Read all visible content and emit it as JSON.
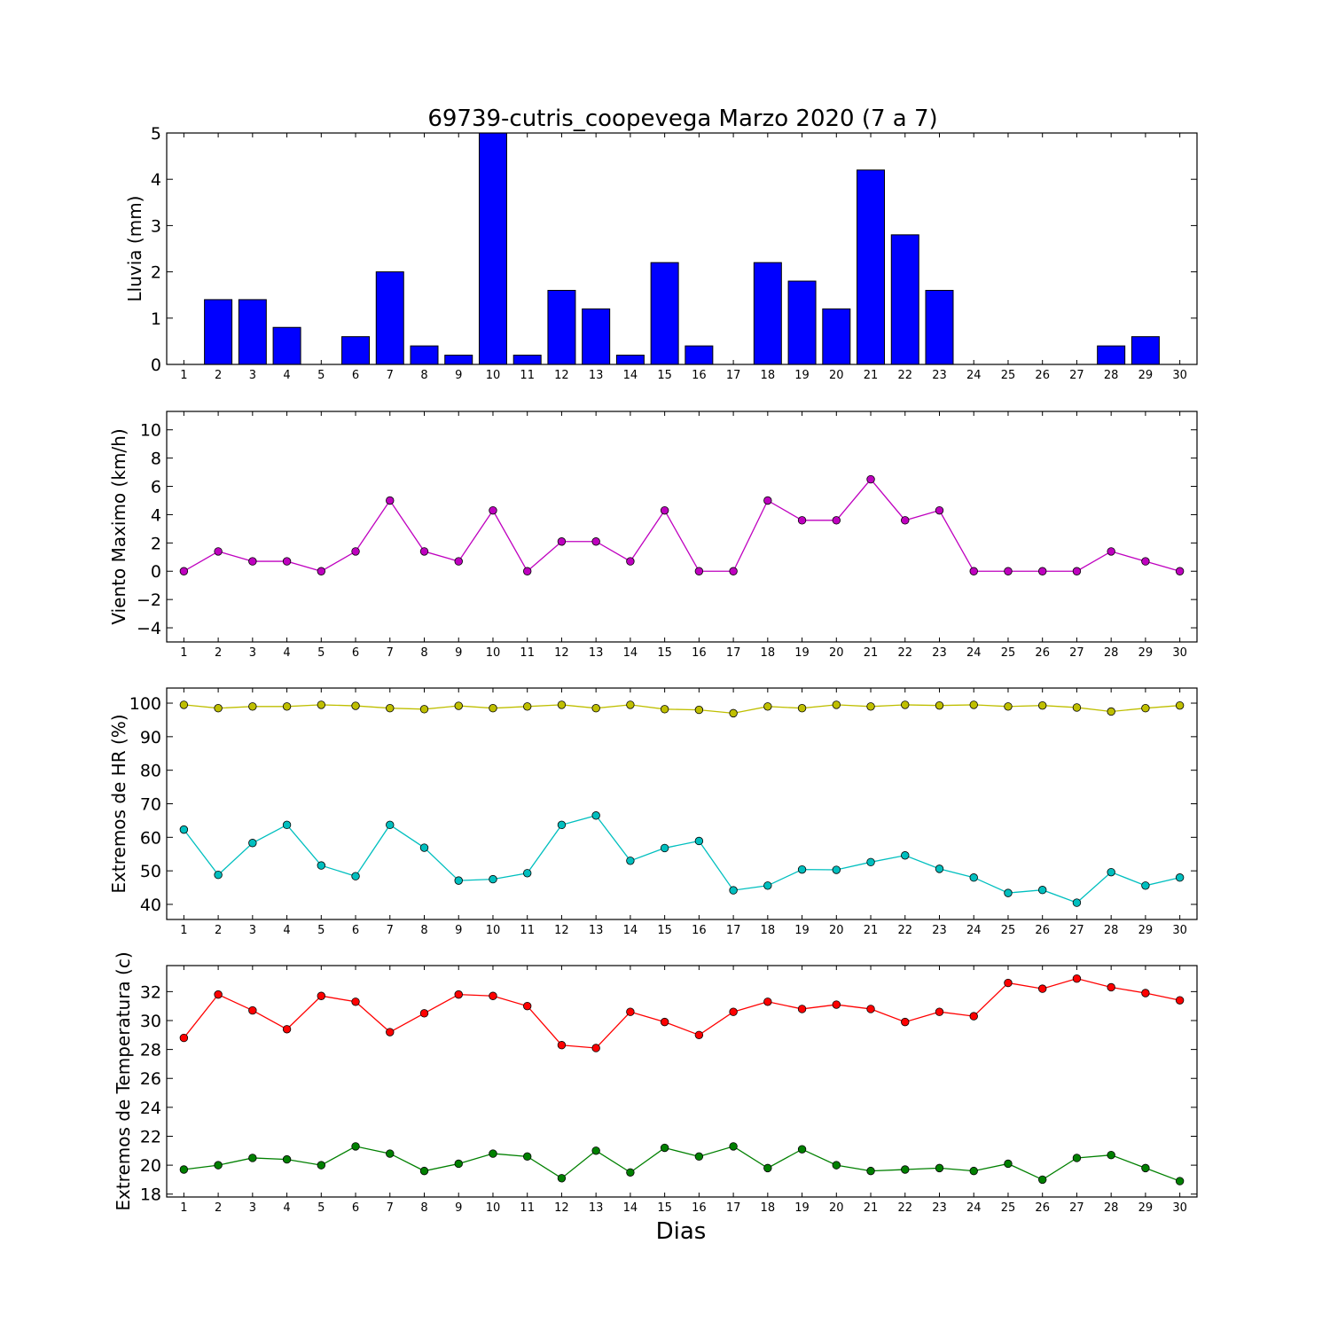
{
  "figure": {
    "title": "69739-cutris_coopevega Marzo 2020  (7 a 7)",
    "xlabel": "Dias"
  },
  "chart_data": [
    {
      "type": "bar",
      "ylabel": "Lluvia (mm)",
      "ylim": [
        0,
        5
      ],
      "yticks": [
        0,
        1,
        2,
        3,
        4,
        5
      ],
      "xlim": [
        0.5,
        30.5
      ],
      "x": [
        1,
        2,
        3,
        4,
        5,
        6,
        7,
        8,
        9,
        10,
        11,
        12,
        13,
        14,
        15,
        16,
        17,
        18,
        19,
        20,
        21,
        22,
        23,
        24,
        25,
        26,
        27,
        28,
        29,
        30
      ],
      "series": [
        {
          "color": "#0000ff",
          "values": [
            0,
            1.4,
            1.4,
            0.8,
            0,
            0.6,
            2.0,
            0.4,
            0.2,
            5.0,
            0.2,
            1.6,
            1.2,
            0.2,
            2.2,
            0.4,
            0,
            2.2,
            1.8,
            1.2,
            4.2,
            2.8,
            1.6,
            0,
            0,
            0,
            0,
            0.4,
            0.6,
            0
          ]
        }
      ]
    },
    {
      "type": "line",
      "ylabel": "Viento Maximo (km/h)",
      "ylim": [
        -5,
        11.3
      ],
      "yticks": [
        -4,
        -2,
        0,
        2,
        4,
        6,
        8,
        10
      ],
      "xlim": [
        0.5,
        30.5
      ],
      "x": [
        1,
        2,
        3,
        4,
        5,
        6,
        7,
        8,
        9,
        10,
        11,
        12,
        13,
        14,
        15,
        16,
        17,
        18,
        19,
        20,
        21,
        22,
        23,
        24,
        25,
        26,
        27,
        28,
        29,
        30
      ],
      "series": [
        {
          "color": "#bf00bf",
          "values": [
            0,
            1.4,
            0.7,
            0.7,
            0,
            1.4,
            5.0,
            1.4,
            0.7,
            4.3,
            0,
            2.1,
            2.1,
            0.7,
            4.3,
            0,
            0,
            5.0,
            3.6,
            3.6,
            6.5,
            3.6,
            4.3,
            0,
            0,
            0,
            0,
            1.4,
            0.7,
            0
          ]
        }
      ]
    },
    {
      "type": "line",
      "ylabel": "Extremos de HR (%)",
      "ylim": [
        35.5,
        104.5
      ],
      "yticks": [
        40,
        50,
        60,
        70,
        80,
        90,
        100
      ],
      "xlim": [
        0.5,
        30.5
      ],
      "x": [
        1,
        2,
        3,
        4,
        5,
        6,
        7,
        8,
        9,
        10,
        11,
        12,
        13,
        14,
        15,
        16,
        17,
        18,
        19,
        20,
        21,
        22,
        23,
        24,
        25,
        26,
        27,
        28,
        29,
        30
      ],
      "series": [
        {
          "color": "#bfbf00",
          "values": [
            99.5,
            98.5,
            99,
            99,
            99.5,
            99.2,
            98.5,
            98.2,
            99.2,
            98.5,
            99,
            99.5,
            98.5,
            99.5,
            98.2,
            98,
            97,
            99,
            98.5,
            99.5,
            99,
            99.5,
            99.3,
            99.5,
            99,
            99.3,
            98.7,
            97.5,
            98.5,
            99.3
          ]
        },
        {
          "color": "#00bfbf",
          "values": [
            62.3,
            48.8,
            58.3,
            63.7,
            51.6,
            48.4,
            63.7,
            56.9,
            47.1,
            47.5,
            49.3,
            63.7,
            66.5,
            53,
            56.8,
            58.9,
            44.2,
            45.6,
            50.4,
            50.3,
            52.6,
            54.6,
            50.6,
            48,
            43.4,
            44.3,
            40.5,
            49.6,
            45.6,
            48
          ]
        }
      ]
    },
    {
      "type": "line",
      "ylabel": "Extremos de Temperatura (c)",
      "ylim": [
        17.8,
        33.8
      ],
      "yticks": [
        18,
        20,
        22,
        24,
        26,
        28,
        30,
        32
      ],
      "xlim": [
        0.5,
        30.5
      ],
      "x": [
        1,
        2,
        3,
        4,
        5,
        6,
        7,
        8,
        9,
        10,
        11,
        12,
        13,
        14,
        15,
        16,
        17,
        18,
        19,
        20,
        21,
        22,
        23,
        24,
        25,
        26,
        27,
        28,
        29,
        30
      ],
      "series": [
        {
          "color": "#ff0000",
          "values": [
            28.8,
            31.8,
            30.7,
            29.4,
            31.7,
            31.3,
            29.2,
            30.5,
            31.8,
            31.7,
            31,
            28.3,
            28.1,
            30.6,
            29.9,
            29,
            30.6,
            31.3,
            30.8,
            31.1,
            30.8,
            29.9,
            30.6,
            30.3,
            32.6,
            32.2,
            32.9,
            32.3,
            31.9,
            31.4
          ]
        },
        {
          "color": "#008000",
          "values": [
            19.7,
            20,
            20.5,
            20.4,
            20,
            21.3,
            20.8,
            19.6,
            20.1,
            20.8,
            20.6,
            19.1,
            21,
            19.5,
            21.2,
            20.6,
            21.3,
            19.8,
            21.1,
            20,
            19.6,
            19.7,
            19.8,
            19.6,
            20.1,
            19,
            20.5,
            20.7,
            19.8,
            18.9
          ]
        }
      ]
    }
  ]
}
